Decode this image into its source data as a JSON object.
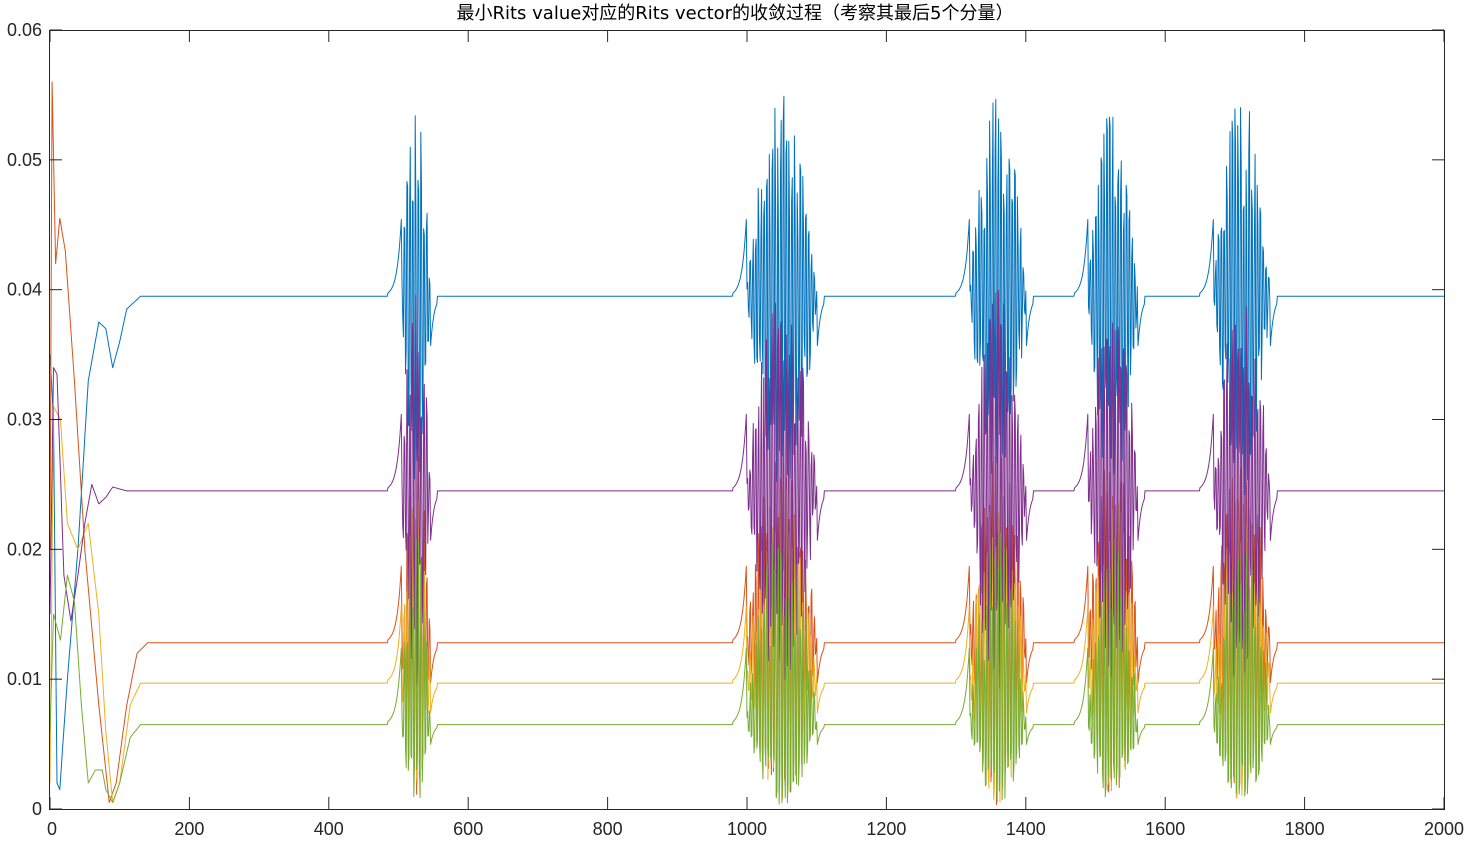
{
  "chart_data": {
    "type": "line",
    "title": "最小Rits value对应的Rits vector的收敛过程（考察其最后5个分量）",
    "xlabel": "",
    "ylabel": "",
    "xlim": [
      0,
      2000
    ],
    "ylim": [
      0,
      0.06
    ],
    "x_ticks": [
      "0",
      "200",
      "400",
      "600",
      "800",
      "1000",
      "1200",
      "1400",
      "1600",
      "1800",
      "2000"
    ],
    "y_ticks": [
      "0",
      "0.01",
      "0.02",
      "0.03",
      "0.04",
      "0.05",
      "0.06"
    ],
    "grid": false,
    "legend": "none",
    "series": [
      {
        "color": "#0072BD",
        "steady_value": 0.0395,
        "profile": [
          [
            0,
            0.035
          ],
          [
            5,
            0.03
          ],
          [
            10,
            0.002
          ],
          [
            14,
            0.0015
          ],
          [
            25,
            0.01
          ],
          [
            40,
            0.02
          ],
          [
            55,
            0.033
          ],
          [
            70,
            0.0375
          ],
          [
            80,
            0.037
          ],
          [
            90,
            0.034
          ],
          [
            100,
            0.036
          ],
          [
            110,
            0.0385
          ],
          [
            130,
            0.0395
          ],
          [
            200,
            0.0395
          ],
          [
            480,
            0.0395
          ],
          [
            2000,
            0.0395
          ]
        ]
      },
      {
        "color": "#D95319",
        "steady_value": 0.0128,
        "profile": [
          [
            0,
            0.02
          ],
          [
            3,
            0.056
          ],
          [
            8,
            0.042
          ],
          [
            14,
            0.0455
          ],
          [
            22,
            0.043
          ],
          [
            35,
            0.033
          ],
          [
            50,
            0.02
          ],
          [
            70,
            0.008
          ],
          [
            80,
            0.003
          ],
          [
            85,
            0.0005
          ],
          [
            95,
            0.002
          ],
          [
            110,
            0.008
          ],
          [
            125,
            0.012
          ],
          [
            140,
            0.0128
          ],
          [
            2000,
            0.0128
          ]
        ]
      },
      {
        "color": "#EDB120",
        "steady_value": 0.0097,
        "profile": [
          [
            0,
            0.002
          ],
          [
            5,
            0.031
          ],
          [
            15,
            0.03
          ],
          [
            25,
            0.022
          ],
          [
            40,
            0.02
          ],
          [
            55,
            0.022
          ],
          [
            70,
            0.015
          ],
          [
            80,
            0.006
          ],
          [
            90,
            0.0005
          ],
          [
            100,
            0.002
          ],
          [
            115,
            0.008
          ],
          [
            130,
            0.0097
          ],
          [
            2000,
            0.0097
          ]
        ]
      },
      {
        "color": "#7E2F8E",
        "steady_value": 0.0245,
        "profile": [
          [
            0,
            0.015
          ],
          [
            5,
            0.034
          ],
          [
            10,
            0.0335
          ],
          [
            20,
            0.018
          ],
          [
            30,
            0.0145
          ],
          [
            40,
            0.018
          ],
          [
            50,
            0.022
          ],
          [
            60,
            0.025
          ],
          [
            70,
            0.0235
          ],
          [
            80,
            0.024
          ],
          [
            90,
            0.0248
          ],
          [
            110,
            0.0245
          ],
          [
            2000,
            0.0245
          ]
        ]
      },
      {
        "color": "#77AC30",
        "steady_value": 0.0065,
        "profile": [
          [
            0,
            0.006
          ],
          [
            5,
            0.015
          ],
          [
            15,
            0.013
          ],
          [
            25,
            0.018
          ],
          [
            35,
            0.016
          ],
          [
            45,
            0.008
          ],
          [
            55,
            0.002
          ],
          [
            65,
            0.003
          ],
          [
            75,
            0.003
          ],
          [
            80,
            0.0015
          ],
          [
            90,
            0.0005
          ],
          [
            100,
            0.002
          ],
          [
            115,
            0.0055
          ],
          [
            130,
            0.0065
          ],
          [
            2000,
            0.0065
          ]
        ]
      }
    ],
    "bursts": [
      {
        "start": 505,
        "end": 545,
        "peak_high": 0.0548,
        "peak_low": 0.0005
      },
      {
        "start": 1000,
        "end": 1100,
        "peak_high": 0.0543,
        "peak_low": 0.0025
      },
      {
        "start": 1320,
        "end": 1400,
        "peak_high": 0.0545,
        "peak_low": 0.0026
      },
      {
        "start": 1490,
        "end": 1560,
        "peak_high": 0.0559,
        "peak_low": 0.0021
      },
      {
        "start": 1670,
        "end": 1750,
        "peak_high": 0.0553,
        "peak_low": 0.0004
      }
    ]
  }
}
